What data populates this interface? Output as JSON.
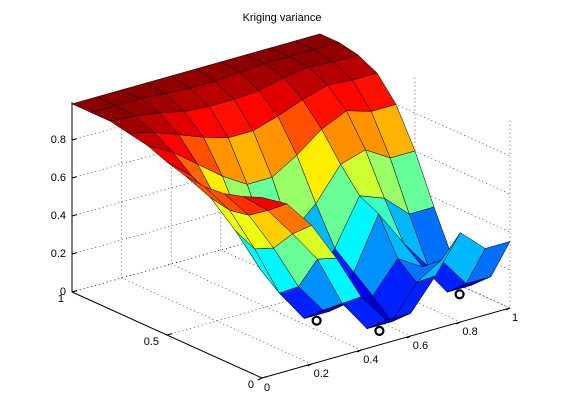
{
  "chart_data": {
    "type": "surface",
    "title": "Kriging variance",
    "colormap": "jet",
    "x": [
      0,
      0.1,
      0.2,
      0.3,
      0.4,
      0.5,
      0.6,
      0.7,
      0.8,
      0.9,
      1
    ],
    "y": [
      0,
      0.1,
      0.2,
      0.3,
      0.4,
      0.5,
      0.6,
      0.7,
      0.8,
      0.9,
      1
    ],
    "z": [
      [
        0.95,
        0.88,
        0.73,
        0.52,
        0.28,
        0.12,
        0.12,
        0.28,
        0.47,
        0.35,
        0.35
      ],
      [
        0.91,
        0.8,
        0.64,
        0.47,
        0.2,
        0.03,
        0.03,
        0.2,
        0.28,
        0.12,
        0.12
      ],
      [
        0.88,
        0.73,
        0.52,
        0.28,
        0.12,
        0.12,
        0.12,
        0.28,
        0.2,
        0.03,
        0.03
      ],
      [
        0.87,
        0.71,
        0.47,
        0.2,
        0.03,
        0.03,
        0.2,
        0.47,
        0.28,
        0.12,
        0.12
      ],
      [
        0.88,
        0.73,
        0.52,
        0.28,
        0.12,
        0.12,
        0.28,
        0.52,
        0.47,
        0.35,
        0.35
      ],
      [
        0.91,
        0.8,
        0.64,
        0.47,
        0.35,
        0.35,
        0.47,
        0.64,
        0.68,
        0.6,
        0.6
      ],
      [
        0.95,
        0.88,
        0.78,
        0.68,
        0.6,
        0.6,
        0.68,
        0.78,
        0.84,
        0.8,
        0.8
      ],
      [
        0.97,
        0.94,
        0.89,
        0.84,
        0.8,
        0.8,
        0.84,
        0.89,
        0.93,
        0.92,
        0.92
      ],
      [
        0.99,
        0.98,
        0.96,
        0.93,
        0.92,
        0.92,
        0.93,
        0.96,
        0.98,
        0.97,
        0.97
      ],
      [
        0.99,
        0.99,
        0.99,
        0.98,
        0.97,
        0.97,
        0.98,
        0.99,
        0.99,
        0.99,
        0.99
      ],
      [
        0.99,
        0.99,
        0.99,
        0.99,
        0.99,
        0.99,
        0.99,
        0.99,
        0.99,
        0.99,
        0.99
      ]
    ],
    "points": {
      "x": [
        0.45,
        0.55,
        0.95
      ],
      "y": [
        0.3,
        0.1,
        0.2
      ],
      "z": [
        0,
        0,
        0
      ]
    },
    "xlim": [
      0,
      1
    ],
    "ylim": [
      0,
      1
    ],
    "zlim": [
      0,
      1
    ],
    "xticks": [
      0,
      0.2,
      0.4,
      0.6,
      0.8,
      1
    ],
    "yticks": [
      0,
      0.5,
      1
    ],
    "zticks": [
      0,
      0.2,
      0.4,
      0.6,
      0.8
    ],
    "grid": true
  }
}
